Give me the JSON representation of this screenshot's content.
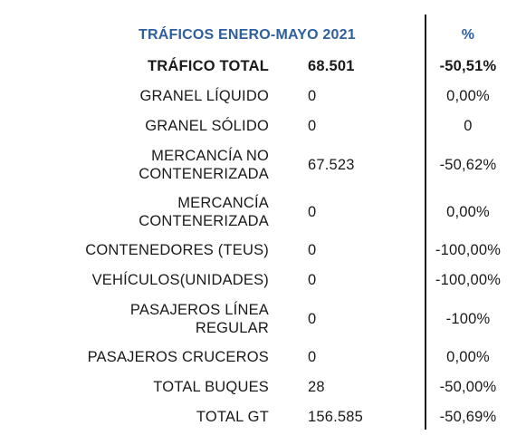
{
  "header": {
    "title": "TRÁFICOS ENERO-MAYO 2021",
    "pct": "%",
    "color": "#2e5f9e"
  },
  "rows": [
    {
      "label": "TRÁFICO TOTAL",
      "value": "68.501",
      "pct": "-50,51%"
    },
    {
      "label": "GRANEL LÍQUIDO",
      "value": "0",
      "pct": "0,00%"
    },
    {
      "label": "GRANEL SÓLIDO",
      "value": "0",
      "pct": "0"
    },
    {
      "label_1": "MERCANCÍA NO",
      "label_2": "CONTENERIZADA",
      "value": "67.523",
      "pct": "-50,62%"
    },
    {
      "label_1": "MERCANCÍA",
      "label_2": "CONTENERIZADA",
      "value": "0",
      "pct": "0,00%"
    },
    {
      "label": "CONTENEDORES (TEUS)",
      "value": "0",
      "pct": "-100,00%"
    },
    {
      "label": "VEHÍCULOS(UNIDADES)",
      "value": "0",
      "pct": "-100,00%"
    },
    {
      "label_1": "PASAJEROS LÍNEA",
      "label_2": "REGULAR",
      "value": "0",
      "pct": "-100%"
    },
    {
      "label": "PASAJEROS CRUCEROS",
      "value": "0",
      "pct": "0,00%"
    },
    {
      "label": "TOTAL BUQUES",
      "value": "28",
      "pct": "-50,00%"
    },
    {
      "label": "TOTAL GT",
      "value": "156.585",
      "pct": "-50,69%"
    }
  ]
}
